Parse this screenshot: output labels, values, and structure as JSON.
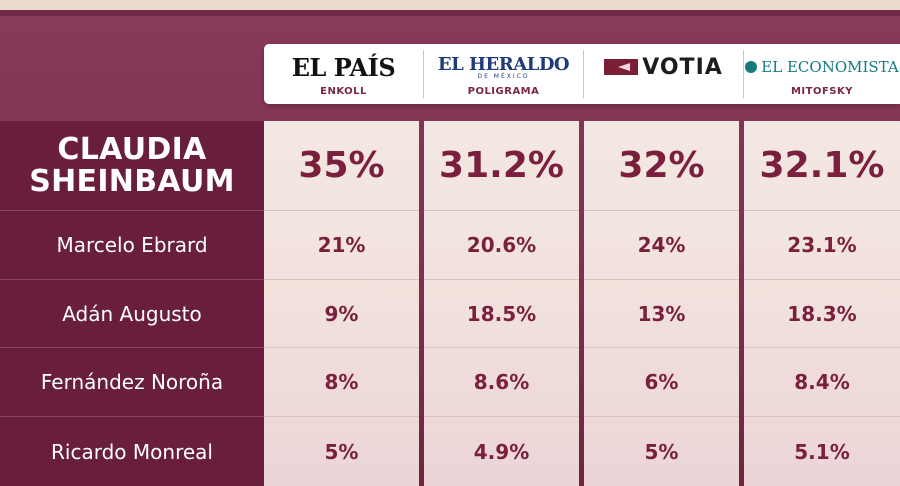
{
  "pollsters": [
    {
      "logo": "EL PAÍS",
      "name": "ENKOLL"
    },
    {
      "logo": "EL HERALDO",
      "logo_sub": "DE MÉXICO",
      "name": "POLIGRAMA"
    },
    {
      "logo": "VOTIA",
      "name": ""
    },
    {
      "logo": "EL ECONOMISTA",
      "name": "MITOFSKY"
    }
  ],
  "colors": {
    "background": "#7c2f4f",
    "name_panel": "#6a1e3d",
    "value_text": "#7a1f3d",
    "column_fill": "#f1e1dc"
  },
  "chart_data": {
    "type": "table",
    "columns": [
      "ENKOLL",
      "POLIGRAMA",
      "VOTIA",
      "MITOFSKY"
    ],
    "rows": [
      {
        "name": "CLAUDIA SHEINBAUM",
        "name_lines": [
          "CLAUDIA",
          "SHEINBAUM"
        ],
        "values": [
          "35%",
          "31.2%",
          "32%",
          "32.1%"
        ]
      },
      {
        "name": "Marcelo Ebrard",
        "values": [
          "21%",
          "20.6%",
          "24%",
          "23.1%"
        ]
      },
      {
        "name": "Adán Augusto",
        "values": [
          "9%",
          "18.5%",
          "13%",
          "18.3%"
        ]
      },
      {
        "name": "Fernández Noroña",
        "values": [
          "8%",
          "8.6%",
          "6%",
          "8.4%"
        ]
      },
      {
        "name": "Ricardo Monreal",
        "values": [
          "5%",
          "4.9%",
          "5%",
          "5.1%"
        ]
      }
    ]
  }
}
